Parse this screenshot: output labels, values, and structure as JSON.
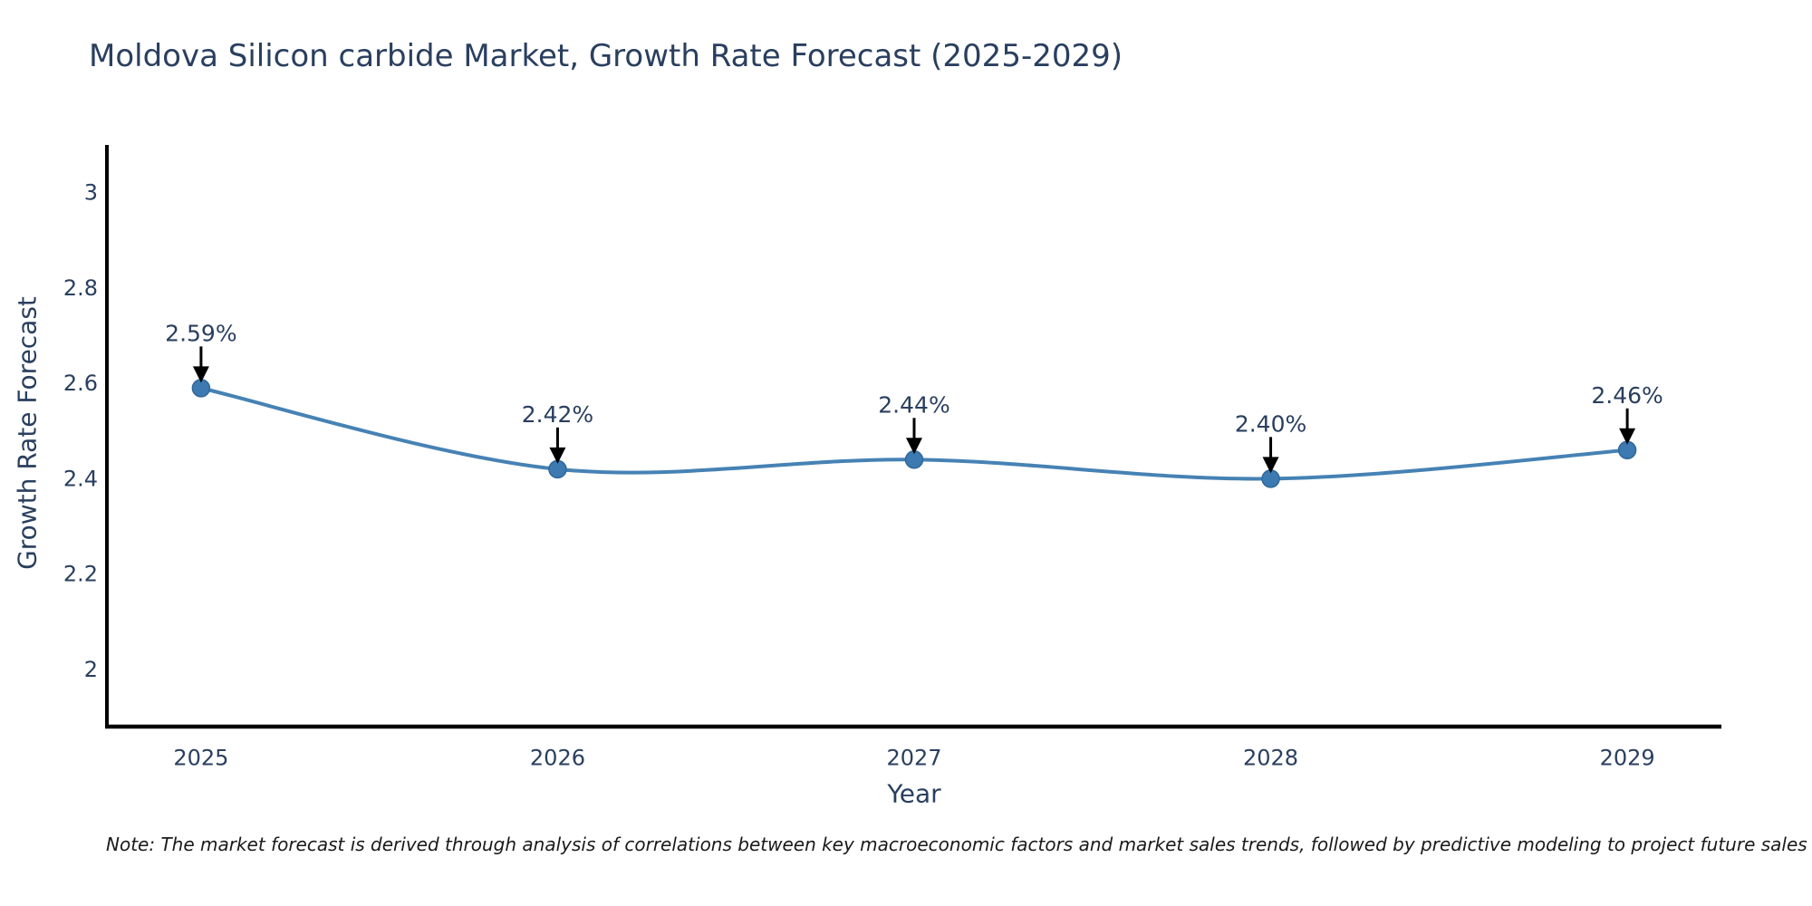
{
  "page": {
    "note": "Note: The market forecast is derived through analysis of correlations between key macroeconomic factors and market sales trends, followed by predictive modeling to project future sales"
  },
  "chart_data": {
    "type": "line",
    "title": "Moldova Silicon carbide Market, Growth Rate Forecast (2025-2029)",
    "xlabel": "Year",
    "ylabel": "Growth Rate Forecast",
    "x": [
      2025,
      2026,
      2027,
      2028,
      2029
    ],
    "values": [
      2.59,
      2.42,
      2.44,
      2.4,
      2.46
    ],
    "point_labels": [
      "2.59%",
      "2.42%",
      "2.44%",
      "2.40%",
      "2.46%"
    ],
    "xtick_labels": [
      "2025",
      "2026",
      "2027",
      "2028",
      "2029"
    ],
    "yticks": [
      2,
      2.2,
      2.4,
      2.6,
      2.8,
      3
    ],
    "ytick_labels": [
      "2",
      "2.2",
      "2.4",
      "2.6",
      "2.8",
      "3"
    ],
    "xlim": [
      2024.736,
      2029.264
    ],
    "ylim": [
      1.88,
      3.1
    ],
    "line_shape": "spline",
    "grid": false,
    "legend": "none",
    "markers": true,
    "annotations_arrows": true,
    "colors": {
      "line": "#4682b4",
      "marker_fill": "#3c7ab1",
      "marker_edge": "#30689b",
      "axis_line": "#000000",
      "tick_text": "#2a3f5f",
      "annotation_text": "#2a3f5f",
      "arrow": "#000000",
      "title_text": "#2a3f5f",
      "note_text": "#1a1a1a",
      "background": "#ffffff"
    }
  }
}
